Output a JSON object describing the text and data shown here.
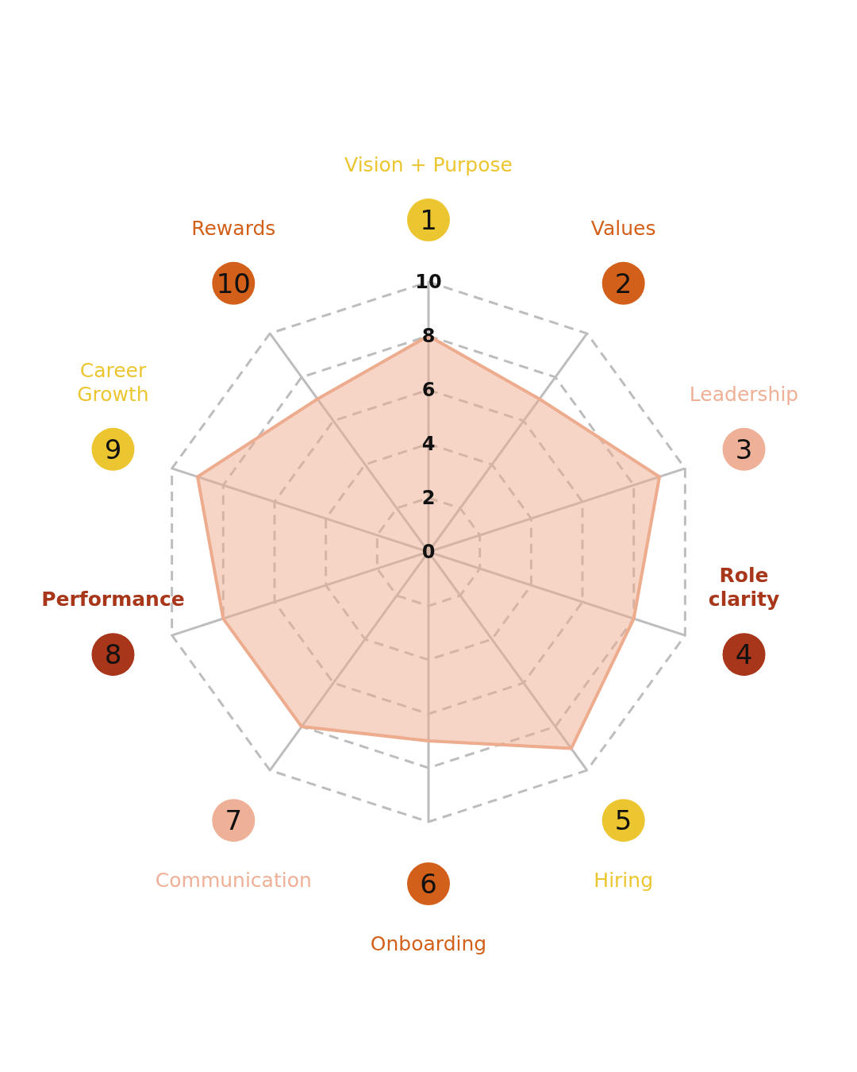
{
  "chart_data": {
    "type": "radar",
    "categories": [
      "Vision + Purpose",
      "Values",
      "Leadership",
      "Role clarity",
      "Hiring",
      "Onboarding",
      "Communication",
      "Performance",
      "Career Growth",
      "Rewards"
    ],
    "colors": [
      "#ecc631",
      "#d2601a",
      "#eeb097",
      "#a8361a",
      "#ecc631",
      "#d2601a",
      "#eeb097",
      "#a8361a",
      "#ecc631",
      "#d2601a"
    ],
    "annotations": [
      "1",
      "2",
      "3",
      "4",
      "5",
      "6",
      "7",
      "8",
      "9",
      "10"
    ],
    "series": [
      {
        "color": "#eeac8f",
        "values": [
          8,
          7,
          9,
          8,
          9,
          7,
          8,
          8,
          9,
          7
        ]
      }
    ],
    "ylim": [
      0,
      10
    ],
    "yticks": [
      0,
      2,
      4,
      6,
      8,
      10
    ],
    "grid": true,
    "marker": "none",
    "line_style": "solid"
  }
}
